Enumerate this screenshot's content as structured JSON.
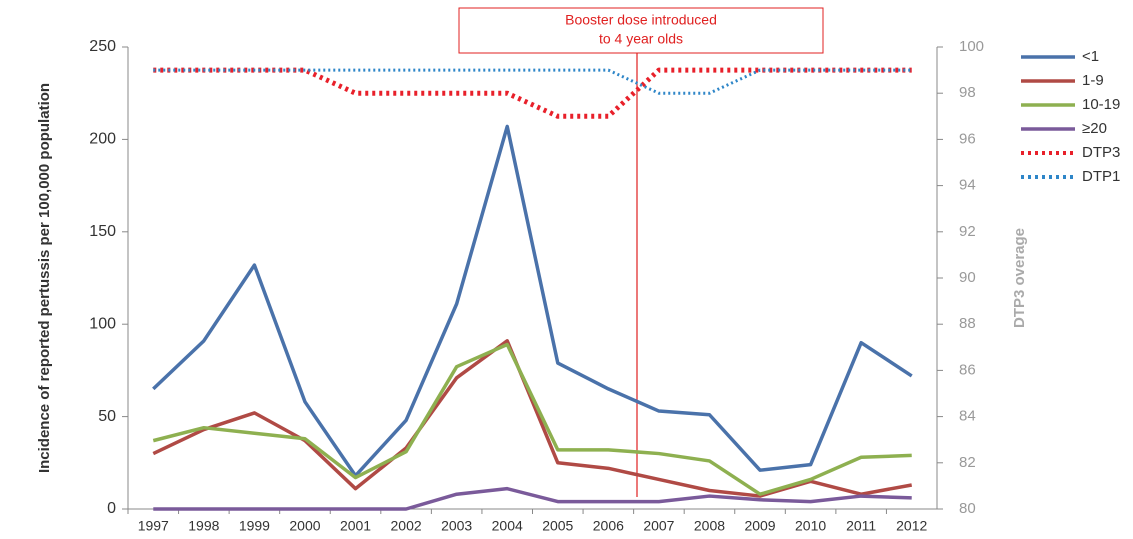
{
  "chart_data": {
    "type": "line",
    "categories": [
      "1997",
      "1998",
      "1999",
      "2000",
      "2001",
      "2002",
      "2003",
      "2004",
      "2005",
      "2006",
      "2007",
      "2008",
      "2009",
      "2010",
      "2011",
      "2012"
    ],
    "y_label": "Incidence of reported pertussis per 100,000 population",
    "y2_label": "DTP3 overage",
    "annotation": [
      "Booster dose introduced",
      "to 4 year olds"
    ],
    "ylim": [
      0,
      250
    ],
    "yticks": [
      0,
      50,
      100,
      150,
      200,
      250
    ],
    "y2lim": [
      80,
      100
    ],
    "y2ticks": [
      80,
      82,
      84,
      86,
      88,
      90,
      92,
      94,
      96,
      98,
      100
    ],
    "legend": "right",
    "series": [
      {
        "name": "<1",
        "color": "#4a72aa",
        "style": "solid",
        "values": [
          65,
          91,
          132,
          58,
          18,
          48,
          111,
          207,
          79,
          65,
          53,
          51,
          21,
          24,
          90,
          72
        ]
      },
      {
        "name": "1-9",
        "color": "#b04a45",
        "style": "solid",
        "values": [
          30,
          43,
          52,
          37,
          11,
          33,
          71,
          91,
          25,
          22,
          16,
          10,
          7,
          15,
          8,
          13
        ]
      },
      {
        "name": "10-19",
        "color": "#8eb050",
        "style": "solid",
        "values": [
          37,
          44,
          41,
          38,
          17,
          31,
          77,
          89,
          32,
          32,
          30,
          26,
          8,
          16,
          28,
          29
        ]
      },
      {
        "name": "≥20",
        "color": "#7a5a9a",
        "style": "solid",
        "values": [
          0,
          0,
          0,
          0,
          0,
          0,
          8,
          11,
          4,
          4,
          4,
          7,
          5,
          4,
          7,
          6
        ]
      },
      {
        "name": "DTP3",
        "color": "#e8202a",
        "style": "dotted",
        "axis": "y2",
        "values": [
          99,
          99,
          99,
          99,
          98,
          98,
          98,
          98,
          97,
          97,
          99,
          99,
          99,
          99,
          99,
          99
        ]
      },
      {
        "name": "DTP1",
        "color": "#2e86c8",
        "style": "dotted",
        "axis": "y2",
        "values": [
          99,
          99,
          99,
          99,
          99,
          99,
          99,
          99,
          99,
          99,
          98,
          98,
          99,
          99,
          99,
          99
        ]
      }
    ]
  }
}
